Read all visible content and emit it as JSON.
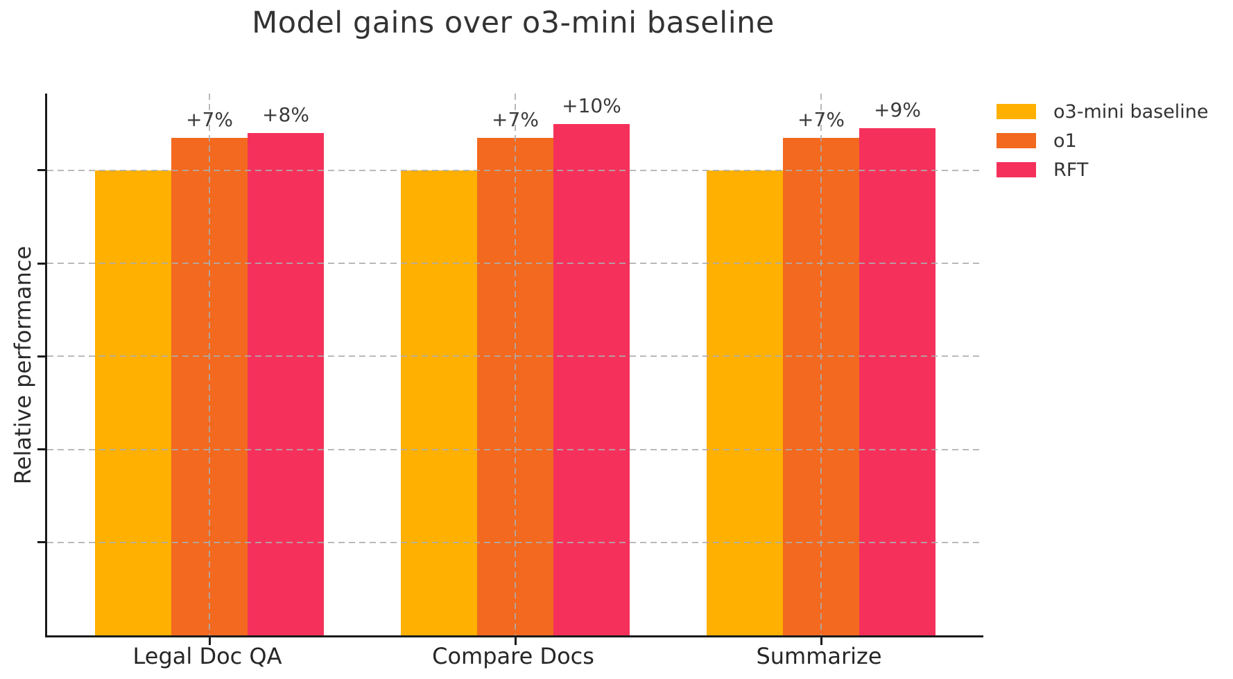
{
  "chart_data": {
    "type": "bar",
    "title": "Model gains over o3-mini baseline",
    "xlabel": "",
    "ylabel": "Relative performance",
    "categories": [
      "Legal Doc QA",
      "Compare Docs",
      "Summarize"
    ],
    "series": [
      {
        "name": "o3-mini baseline",
        "color": "#FFB000",
        "values": [
          100,
          100,
          100
        ],
        "annotations": [
          "",
          "",
          ""
        ]
      },
      {
        "name": "o1",
        "color": "#F2691F",
        "values": [
          107,
          107,
          107
        ],
        "annotations": [
          "+7%",
          "+7%",
          "+7%"
        ]
      },
      {
        "name": "RFT",
        "color": "#F5315B",
        "values": [
          108,
          110,
          109
        ],
        "annotations": [
          "+8%",
          "+10%",
          "+9%"
        ]
      }
    ],
    "baseline_value": 100,
    "ylim": [
      0,
      116.5
    ],
    "y_tick_values": [
      20,
      40,
      60,
      80,
      100
    ],
    "y_tick_labels_visible": false,
    "grid": "dashed gray, horizontal at y ticks and vertical at category centers, drawn over bars",
    "legend_position": "upper right, no border",
    "colors": {
      "grid": "#ADADAD",
      "spine": "#1A1A1A",
      "title_text": "#333333",
      "annotation_text": "#3A3A3A"
    }
  }
}
